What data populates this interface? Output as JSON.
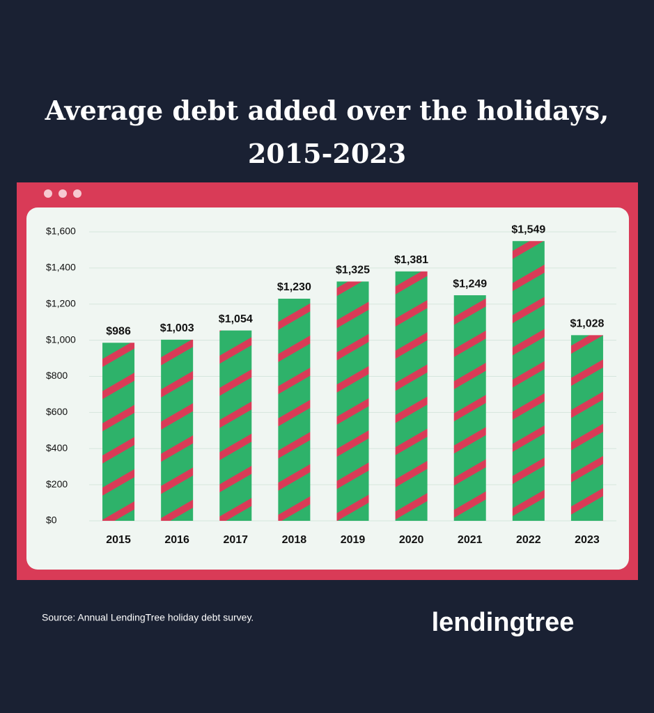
{
  "chart_data": {
    "type": "bar",
    "title": "Average debt added over the holidays, 2015-2023",
    "categories": [
      "2015",
      "2016",
      "2017",
      "2018",
      "2019",
      "2020",
      "2021",
      "2022",
      "2023"
    ],
    "values": [
      986,
      1003,
      1054,
      1230,
      1325,
      1381,
      1249,
      1549,
      1028
    ],
    "value_labels": [
      "$986",
      "$1,003",
      "$1,054",
      "$1,230",
      "$1,325",
      "$1,381",
      "$1,249",
      "$1,549",
      "$1,028"
    ],
    "color": "#2eb26a",
    "stripe_color": "#d93b57",
    "ylim": [
      0,
      1600
    ],
    "yticks": [
      {
        "value": 0,
        "label": "$0"
      },
      {
        "value": 200,
        "label": "$200"
      },
      {
        "value": 400,
        "label": "$400"
      },
      {
        "value": 600,
        "label": "$600"
      },
      {
        "value": 800,
        "label": "$800"
      },
      {
        "value": 1000,
        "label": "$1,000"
      },
      {
        "value": 1200,
        "label": "$1,200"
      },
      {
        "value": 1400,
        "label": "$1,400"
      },
      {
        "value": 1600,
        "label": "$1,600"
      }
    ],
    "grid": true
  },
  "source": "Source: Annual LendingTree holiday debt survey.",
  "logo": "lendingtree"
}
